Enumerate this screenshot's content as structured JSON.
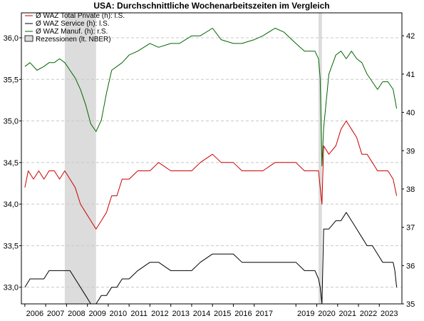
{
  "chart_data": {
    "type": "line",
    "title": "USA: Durchschnittliche Wochenarbeitszeiten im Vergleich",
    "x_axis": {
      "type": "date",
      "range": [
        "2005-11-01",
        "2024-02-01"
      ],
      "tick_labels": [
        "2006",
        "2007",
        "2008",
        "2009",
        "2010",
        "2011",
        "2012",
        "2013",
        "2014",
        "2015",
        "2016",
        "2017",
        "2019",
        "2020",
        "2021",
        "2022",
        "2023"
      ],
      "tick_dates": [
        "2006-01-01",
        "2007-01-01",
        "2008-01-01",
        "2009-01-01",
        "2010-01-01",
        "2011-01-01",
        "2012-01-01",
        "2013-01-01",
        "2014-01-01",
        "2015-01-01",
        "2016-01-01",
        "2017-01-01",
        "2019-01-01",
        "2020-01-01",
        "2021-01-01",
        "2022-01-01",
        "2023-01-01"
      ]
    },
    "y_left": {
      "range": [
        32.8,
        36.3
      ],
      "ticks": [
        33.0,
        33.5,
        34.0,
        34.5,
        35.0,
        35.5,
        36.0
      ],
      "tick_labels": [
        "33,0",
        "33,5",
        "34,0",
        "34,5",
        "35,0",
        "35,5",
        "36,0"
      ]
    },
    "y_right": {
      "range": [
        35.0,
        42.6
      ],
      "ticks": [
        35,
        36,
        37,
        38,
        39,
        40,
        41,
        42
      ],
      "tick_labels": [
        "35",
        "36",
        "37",
        "38",
        "39",
        "40",
        "41",
        "42"
      ]
    },
    "grid": "horizontal-dashed",
    "legend_position": "top-left",
    "legend": [
      "Ø WAZ Total Private (h): l.S.",
      "Ø WAZ Service (h): l.S.",
      "Ø WAZ Manuf. (h): r.S.",
      "Rezessionen (lt. NBER)"
    ],
    "recessions": [
      {
        "start": "2007-12-01",
        "end": "2009-06-01"
      },
      {
        "start": "2020-02-01",
        "end": "2020-04-01"
      }
    ],
    "series": [
      {
        "name": "Ø WAZ Total Private (h): l.S.",
        "axis": "left",
        "color": "#cc0000",
        "points": [
          [
            "2006-01-01",
            34.2
          ],
          [
            "2006-03-01",
            34.4
          ],
          [
            "2006-06-01",
            34.3
          ],
          [
            "2006-09-01",
            34.4
          ],
          [
            "2006-12-01",
            34.3
          ],
          [
            "2007-03-01",
            34.4
          ],
          [
            "2007-06-01",
            34.4
          ],
          [
            "2007-09-01",
            34.3
          ],
          [
            "2007-12-01",
            34.4
          ],
          [
            "2008-03-01",
            34.3
          ],
          [
            "2008-06-01",
            34.2
          ],
          [
            "2008-09-01",
            34.0
          ],
          [
            "2008-12-01",
            33.9
          ],
          [
            "2009-03-01",
            33.8
          ],
          [
            "2009-06-01",
            33.7
          ],
          [
            "2009-09-01",
            33.8
          ],
          [
            "2009-12-01",
            33.9
          ],
          [
            "2010-03-01",
            34.1
          ],
          [
            "2010-06-01",
            34.1
          ],
          [
            "2010-09-01",
            34.3
          ],
          [
            "2011-01-01",
            34.3
          ],
          [
            "2011-06-01",
            34.4
          ],
          [
            "2012-01-01",
            34.4
          ],
          [
            "2012-06-01",
            34.5
          ],
          [
            "2013-01-01",
            34.4
          ],
          [
            "2013-06-01",
            34.4
          ],
          [
            "2014-01-01",
            34.4
          ],
          [
            "2014-06-01",
            34.5
          ],
          [
            "2015-01-01",
            34.6
          ],
          [
            "2015-06-01",
            34.5
          ],
          [
            "2016-01-01",
            34.5
          ],
          [
            "2016-06-01",
            34.4
          ],
          [
            "2017-01-01",
            34.4
          ],
          [
            "2017-06-01",
            34.4
          ],
          [
            "2018-01-01",
            34.5
          ],
          [
            "2018-06-01",
            34.5
          ],
          [
            "2019-01-01",
            34.5
          ],
          [
            "2019-06-01",
            34.4
          ],
          [
            "2019-12-01",
            34.4
          ],
          [
            "2020-02-01",
            34.4
          ],
          [
            "2020-03-01",
            34.2
          ],
          [
            "2020-04-01",
            34.0
          ],
          [
            "2020-05-01",
            34.7
          ],
          [
            "2020-08-01",
            34.6
          ],
          [
            "2020-12-01",
            34.7
          ],
          [
            "2021-03-01",
            34.9
          ],
          [
            "2021-06-01",
            35.0
          ],
          [
            "2021-09-01",
            34.9
          ],
          [
            "2021-12-01",
            34.8
          ],
          [
            "2022-03-01",
            34.6
          ],
          [
            "2022-06-01",
            34.6
          ],
          [
            "2022-09-01",
            34.5
          ],
          [
            "2022-12-01",
            34.4
          ],
          [
            "2023-03-01",
            34.4
          ],
          [
            "2023-06-01",
            34.4
          ],
          [
            "2023-09-01",
            34.3
          ],
          [
            "2023-11-01",
            34.1
          ]
        ]
      },
      {
        "name": "Ø WAZ Service (h): l.S.",
        "axis": "left",
        "color": "#000000",
        "points": [
          [
            "2006-01-01",
            33.0
          ],
          [
            "2006-04-01",
            33.1
          ],
          [
            "2006-08-01",
            33.1
          ],
          [
            "2006-12-01",
            33.1
          ],
          [
            "2007-03-01",
            33.2
          ],
          [
            "2007-09-01",
            33.2
          ],
          [
            "2008-03-01",
            33.2
          ],
          [
            "2008-06-01",
            33.1
          ],
          [
            "2008-09-01",
            33.0
          ],
          [
            "2008-12-01",
            32.9
          ],
          [
            "2009-03-01",
            32.8
          ],
          [
            "2009-06-01",
            32.8
          ],
          [
            "2009-09-01",
            32.9
          ],
          [
            "2009-12-01",
            32.9
          ],
          [
            "2010-03-01",
            33.0
          ],
          [
            "2010-06-01",
            33.0
          ],
          [
            "2010-09-01",
            33.1
          ],
          [
            "2011-01-01",
            33.1
          ],
          [
            "2011-06-01",
            33.2
          ],
          [
            "2012-01-01",
            33.3
          ],
          [
            "2012-06-01",
            33.3
          ],
          [
            "2013-01-01",
            33.2
          ],
          [
            "2013-06-01",
            33.2
          ],
          [
            "2014-01-01",
            33.2
          ],
          [
            "2014-06-01",
            33.3
          ],
          [
            "2015-01-01",
            33.4
          ],
          [
            "2015-06-01",
            33.4
          ],
          [
            "2016-01-01",
            33.4
          ],
          [
            "2016-06-01",
            33.3
          ],
          [
            "2017-01-01",
            33.3
          ],
          [
            "2017-06-01",
            33.3
          ],
          [
            "2018-01-01",
            33.3
          ],
          [
            "2018-06-01",
            33.3
          ],
          [
            "2019-01-01",
            33.3
          ],
          [
            "2019-06-01",
            33.2
          ],
          [
            "2019-12-01",
            33.2
          ],
          [
            "2020-02-01",
            33.1
          ],
          [
            "2020-03-01",
            33.0
          ],
          [
            "2020-04-01",
            32.8
          ],
          [
            "2020-05-01",
            33.7
          ],
          [
            "2020-08-01",
            33.7
          ],
          [
            "2020-12-01",
            33.8
          ],
          [
            "2021-03-01",
            33.8
          ],
          [
            "2021-06-01",
            33.9
          ],
          [
            "2021-09-01",
            33.8
          ],
          [
            "2021-12-01",
            33.7
          ],
          [
            "2022-03-01",
            33.6
          ],
          [
            "2022-06-01",
            33.5
          ],
          [
            "2022-09-01",
            33.5
          ],
          [
            "2022-12-01",
            33.4
          ],
          [
            "2023-03-01",
            33.3
          ],
          [
            "2023-06-01",
            33.3
          ],
          [
            "2023-09-01",
            33.3
          ],
          [
            "2023-10-01",
            33.2
          ],
          [
            "2023-11-01",
            33.0
          ]
        ]
      },
      {
        "name": "Ø WAZ Manuf. (h): r.S.",
        "axis": "right",
        "color": "#006600",
        "points": [
          [
            "2006-01-01",
            41.2
          ],
          [
            "2006-04-01",
            41.3
          ],
          [
            "2006-08-01",
            41.1
          ],
          [
            "2006-12-01",
            41.2
          ],
          [
            "2007-03-01",
            41.3
          ],
          [
            "2007-06-01",
            41.3
          ],
          [
            "2007-09-01",
            41.4
          ],
          [
            "2007-12-01",
            41.3
          ],
          [
            "2008-03-01",
            41.1
          ],
          [
            "2008-06-01",
            40.9
          ],
          [
            "2008-09-01",
            40.6
          ],
          [
            "2008-12-01",
            40.2
          ],
          [
            "2009-03-01",
            39.7
          ],
          [
            "2009-06-01",
            39.5
          ],
          [
            "2009-09-01",
            39.8
          ],
          [
            "2009-12-01",
            40.5
          ],
          [
            "2010-03-01",
            41.1
          ],
          [
            "2010-06-01",
            41.2
          ],
          [
            "2010-09-01",
            41.3
          ],
          [
            "2011-01-01",
            41.5
          ],
          [
            "2011-06-01",
            41.6
          ],
          [
            "2012-01-01",
            41.8
          ],
          [
            "2012-06-01",
            41.7
          ],
          [
            "2013-01-01",
            41.8
          ],
          [
            "2013-06-01",
            41.8
          ],
          [
            "2014-01-01",
            42.0
          ],
          [
            "2014-06-01",
            42.0
          ],
          [
            "2015-01-01",
            42.2
          ],
          [
            "2015-06-01",
            41.9
          ],
          [
            "2016-01-01",
            41.8
          ],
          [
            "2016-06-01",
            41.8
          ],
          [
            "2017-01-01",
            41.9
          ],
          [
            "2017-06-01",
            42.0
          ],
          [
            "2018-01-01",
            42.2
          ],
          [
            "2018-06-01",
            42.1
          ],
          [
            "2019-01-01",
            41.8
          ],
          [
            "2019-06-01",
            41.6
          ],
          [
            "2019-12-01",
            41.6
          ],
          [
            "2020-02-01",
            41.4
          ],
          [
            "2020-03-01",
            40.9
          ],
          [
            "2020-04-01",
            38.6
          ],
          [
            "2020-05-01",
            39.6
          ],
          [
            "2020-08-01",
            41.0
          ],
          [
            "2020-12-01",
            41.5
          ],
          [
            "2021-03-01",
            41.6
          ],
          [
            "2021-06-01",
            41.4
          ],
          [
            "2021-09-01",
            41.6
          ],
          [
            "2021-12-01",
            41.4
          ],
          [
            "2022-03-01",
            41.3
          ],
          [
            "2022-06-01",
            41.0
          ],
          [
            "2022-09-01",
            40.8
          ],
          [
            "2022-12-01",
            40.6
          ],
          [
            "2023-03-01",
            40.8
          ],
          [
            "2023-06-01",
            40.8
          ],
          [
            "2023-09-01",
            40.6
          ],
          [
            "2023-11-01",
            40.1
          ]
        ]
      }
    ]
  }
}
